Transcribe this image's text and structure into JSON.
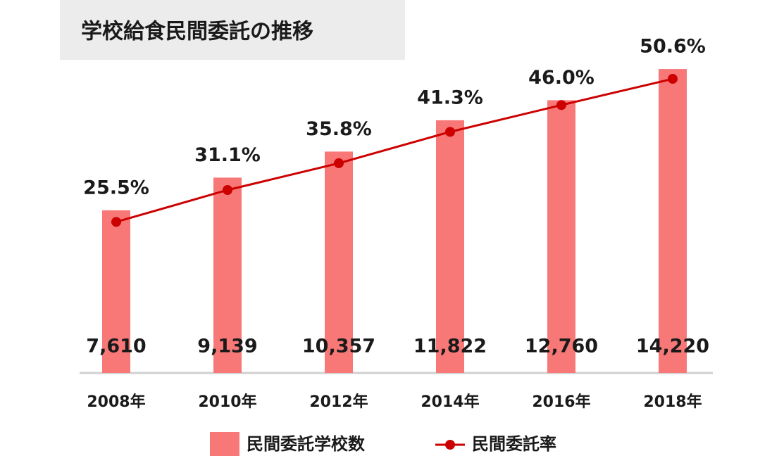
{
  "chart_data": {
    "type": "bar-line",
    "title": "学校給食民間委託の推移",
    "categories": [
      "2008年",
      "2010年",
      "2012年",
      "2014年",
      "2016年",
      "2018年"
    ],
    "series": [
      {
        "name": "民間委託学校数",
        "type": "bar",
        "color": "#f87878",
        "values": [
          7610,
          9139,
          10357,
          11822,
          12760,
          14220
        ],
        "value_labels": [
          "7,610",
          "9,139",
          "10,357",
          "11,822",
          "12,760",
          "14,220"
        ]
      },
      {
        "name": "民間委託率",
        "type": "line",
        "axis": "y2",
        "color": "#cc0000",
        "values": [
          25.5,
          31.1,
          35.8,
          41.3,
          46.0,
          50.6
        ],
        "value_labels": [
          "25.5%",
          "31.1%",
          "35.8%",
          "41.3%",
          "46.0%",
          "50.6%"
        ]
      }
    ],
    "ylim": [
      0,
      16000
    ],
    "y2lim": [
      -1,
      59
    ]
  }
}
